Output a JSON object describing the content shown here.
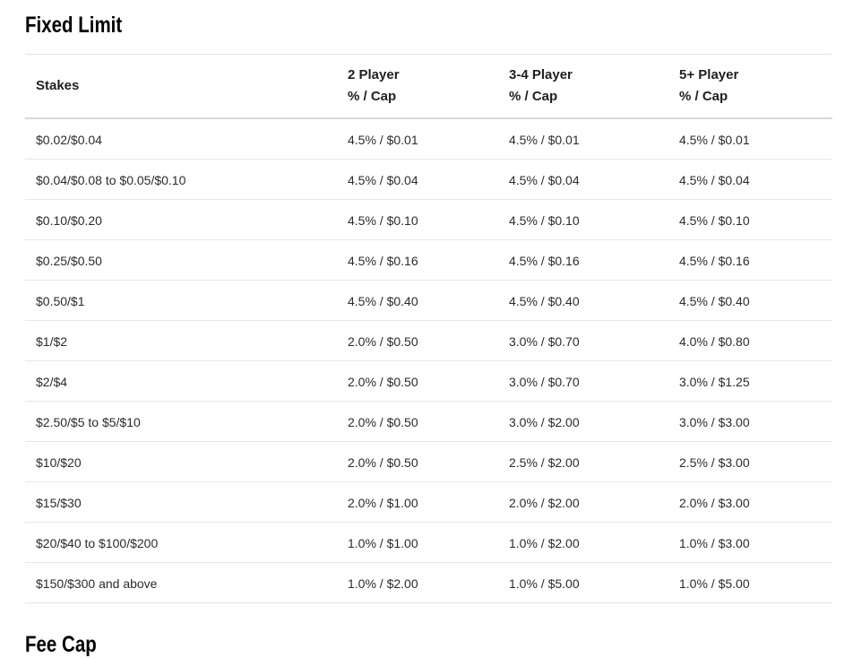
{
  "sections": [
    {
      "title": "Fixed Limit"
    },
    {
      "title": "Fee Cap"
    }
  ],
  "table": {
    "columns": [
      {
        "label": "Stakes",
        "sub": ""
      },
      {
        "label": "2 Player",
        "sub": "% / Cap"
      },
      {
        "label": "3-4 Player",
        "sub": "% / Cap"
      },
      {
        "label": "5+ Player",
        "sub": "% / Cap"
      }
    ],
    "rows": [
      [
        "$0.02/$0.04",
        "4.5% / $0.01",
        "4.5% / $0.01",
        "4.5% / $0.01"
      ],
      [
        "$0.04/$0.08 to $0.05/$0.10",
        "4.5% / $0.04",
        "4.5% / $0.04",
        "4.5% / $0.04"
      ],
      [
        "$0.10/$0.20",
        "4.5% / $0.10",
        "4.5% / $0.10",
        "4.5% / $0.10"
      ],
      [
        "$0.25/$0.50",
        "4.5% / $0.16",
        "4.5% / $0.16",
        "4.5% / $0.16"
      ],
      [
        "$0.50/$1",
        "4.5% / $0.40",
        "4.5% / $0.40",
        "4.5% / $0.40"
      ],
      [
        "$1/$2",
        "2.0% / $0.50",
        "3.0% / $0.70",
        "4.0% / $0.80"
      ],
      [
        "$2/$4",
        "2.0% / $0.50",
        "3.0% / $0.70",
        "3.0% / $1.25"
      ],
      [
        "$2.50/$5 to $5/$10",
        "2.0% / $0.50",
        "3.0% / $2.00",
        "3.0% / $3.00"
      ],
      [
        "$10/$20",
        "2.0% / $0.50",
        "2.5% / $2.00",
        "2.5% / $3.00"
      ],
      [
        "$15/$30",
        "2.0% / $1.00",
        "2.0% / $2.00",
        "2.0% / $3.00"
      ],
      [
        "$20/$40 to $100/$200",
        "1.0% / $1.00",
        "1.0% / $2.00",
        "1.0% / $3.00"
      ],
      [
        "$150/$300 and above",
        "1.0% / $2.00",
        "1.0% / $5.00",
        "1.0% / $5.00"
      ]
    ]
  },
  "colors": {
    "heading_text": "#000000",
    "header_text": "#1f1f1f",
    "body_text": "#2b2b2b",
    "row_divider": "#e7e7e7",
    "header_divider": "#d8d8d8",
    "background": "#ffffff"
  }
}
